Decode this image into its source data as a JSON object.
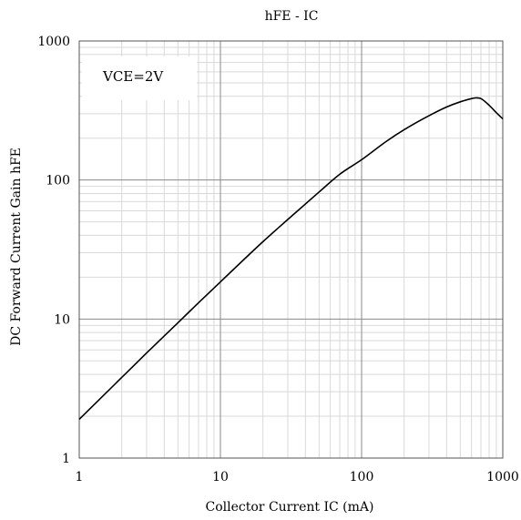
{
  "chart_data": {
    "type": "line",
    "title": "hFE - IC",
    "xlabel": "Collector Current IC (mA)",
    "ylabel": "DC Forward Current Gain hFE",
    "xscale": "log",
    "yscale": "log",
    "xlim": [
      1,
      1000
    ],
    "ylim": [
      1,
      1000
    ],
    "x_ticks": [
      "1",
      "10",
      "100",
      "1000"
    ],
    "y_ticks": [
      "1",
      "10",
      "100",
      "1000"
    ],
    "grid": true,
    "annotation": "VCE=2V",
    "series": [
      {
        "x": [
          1,
          2,
          3,
          5,
          7,
          10,
          20,
          30,
          50,
          70,
          100,
          150,
          200,
          300,
          400,
          500,
          600,
          650,
          700,
          800,
          900,
          1000
        ],
        "values": [
          1.9,
          3.8,
          5.7,
          9.4,
          13.1,
          18.5,
          36,
          52,
          82,
          110,
          140,
          190,
          230,
          290,
          335,
          365,
          385,
          390,
          385,
          345,
          305,
          275
        ]
      }
    ]
  },
  "colors": {
    "line": "#000000",
    "grid_major": "#888888",
    "grid_minor": "#d9d9d9",
    "frame": "#555555"
  }
}
